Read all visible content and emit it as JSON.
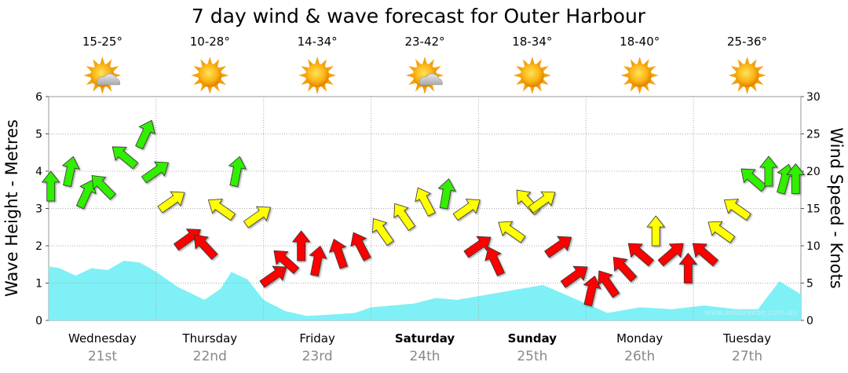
{
  "chart_data": {
    "type": "area",
    "title": "7 day wind & wave forecast for Outer Harbour",
    "ylabel_left": "Wave Height - Metres",
    "ylabel_right": "Wind Speed - Knots",
    "ylim_left": [
      0,
      6
    ],
    "ylim_right": [
      0,
      30
    ],
    "yticks_left": [
      "0",
      "1",
      "2",
      "3",
      "4",
      "5",
      "6"
    ],
    "yticks_right": [
      "0",
      "5",
      "10",
      "15",
      "20",
      "25",
      "30"
    ],
    "grid": true,
    "watermark": "www.seabreeze.com.au",
    "days": [
      {
        "name": "Wednesday",
        "date": "21st",
        "temp": "15-25°",
        "icon": "sun-cloud-icon",
        "bold": false
      },
      {
        "name": "Thursday",
        "date": "22nd",
        "temp": "10-28°",
        "icon": "sun-icon",
        "bold": false
      },
      {
        "name": "Friday",
        "date": "23rd",
        "temp": "14-34°",
        "icon": "sun-icon",
        "bold": false
      },
      {
        "name": "Saturday",
        "date": "24th",
        "temp": "23-42°",
        "icon": "sun-cloud-icon",
        "bold": true
      },
      {
        "name": "Sunday",
        "date": "25th",
        "temp": "18-34°",
        "icon": "sun-icon",
        "bold": true
      },
      {
        "name": "Monday",
        "date": "26th",
        "temp": "18-40°",
        "icon": "sun-icon",
        "bold": false
      },
      {
        "name": "Tuesday",
        "date": "27th",
        "temp": "25-36°",
        "icon": "sun-icon",
        "bold": false
      }
    ],
    "wave_series": {
      "name": "Wave Height",
      "color": "#7ff0f6",
      "x_days": [
        0,
        0.1,
        0.25,
        0.4,
        0.55,
        0.7,
        0.85,
        1.0,
        1.2,
        1.45,
        1.6,
        1.7,
        1.85,
        2.0,
        2.2,
        2.4,
        2.6,
        2.85,
        3.0,
        3.2,
        3.4,
        3.6,
        3.8,
        4.0,
        4.3,
        4.6,
        4.8,
        5.0,
        5.2,
        5.5,
        5.8,
        6.1,
        6.4,
        6.6,
        6.8,
        7.0
      ],
      "values": [
        1.45,
        1.4,
        1.2,
        1.4,
        1.35,
        1.6,
        1.55,
        1.3,
        0.9,
        0.55,
        0.85,
        1.3,
        1.1,
        0.55,
        0.25,
        0.12,
        0.15,
        0.2,
        0.35,
        0.4,
        0.45,
        0.6,
        0.55,
        0.65,
        0.8,
        0.95,
        0.7,
        0.45,
        0.2,
        0.35,
        0.3,
        0.4,
        0.3,
        0.3,
        1.05,
        0.7
      ]
    },
    "wind_series": {
      "name": "Wind Speed",
      "x_days": [
        0.02,
        0.2,
        0.35,
        0.5,
        0.7,
        0.9,
        1.0,
        1.15,
        1.3,
        1.45,
        1.6,
        1.75,
        1.95,
        2.1,
        2.2,
        2.35,
        2.5,
        2.7,
        2.9,
        3.1,
        3.3,
        3.5,
        3.7,
        3.9,
        4.0,
        4.15,
        4.3,
        4.45,
        4.6,
        4.75,
        4.9,
        5.05,
        5.2,
        5.35,
        5.5,
        5.65,
        5.8,
        5.95,
        6.1,
        6.25,
        6.4,
        6.55,
        6.7,
        6.85,
        6.95
      ],
      "values": [
        18,
        20,
        17,
        18,
        22,
        25,
        20,
        16,
        11,
        10,
        15,
        20,
        14,
        6,
        8,
        10,
        8,
        9,
        10,
        12,
        14,
        16,
        17,
        15,
        10,
        8,
        12,
        16,
        16,
        10,
        6,
        4,
        5,
        7,
        9,
        12,
        9,
        7,
        9,
        12,
        15,
        19,
        20,
        19,
        19
      ]
    },
    "wind_color_thresholds": [
      {
        "below": 12,
        "color": "#ff0000"
      },
      {
        "below": 17,
        "color": "#ffff00"
      },
      {
        "below": 99,
        "color": "#33ee00"
      }
    ]
  }
}
